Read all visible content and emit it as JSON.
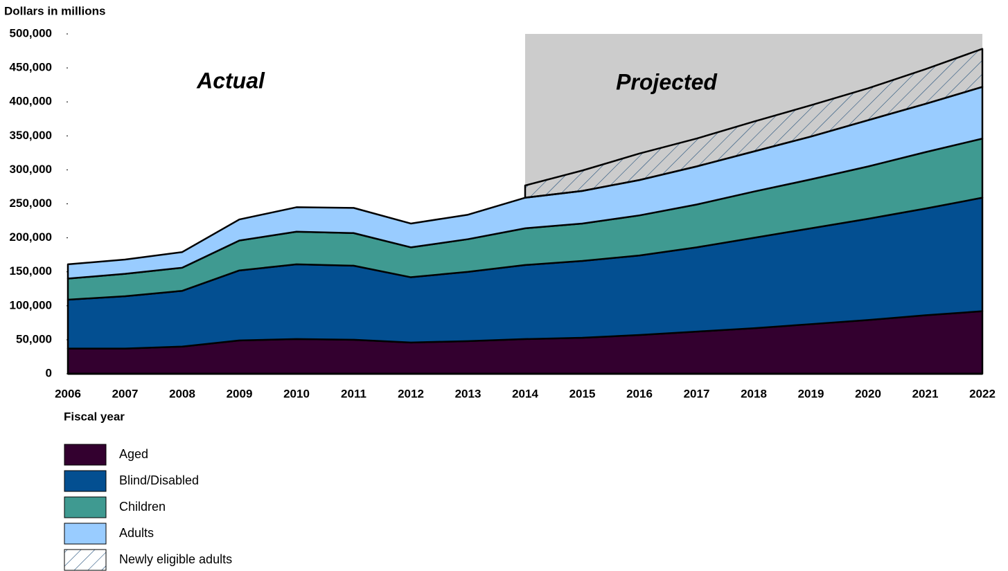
{
  "chart_data": {
    "type": "stacked_area",
    "y_axis_label": "Dollars in millions",
    "x_axis_label": "Fiscal year",
    "annotations": [
      "Actual",
      "Projected"
    ],
    "categories": [
      "2006",
      "2007",
      "2008",
      "2009",
      "2010",
      "2011",
      "2012",
      "2013",
      "2014",
      "2015",
      "2016",
      "2017",
      "2018",
      "2019",
      "2020",
      "2021",
      "2022"
    ],
    "ylim": [
      0,
      500000
    ],
    "yticks": [
      0,
      {
        "value": 50000,
        "label": "50,000"
      },
      {
        "value": 100000,
        "label": "100,000"
      },
      {
        "value": 150000,
        "label": "150,000"
      },
      {
        "value": 200000,
        "label": "200,000"
      },
      {
        "value": 250000,
        "label": "250,000"
      },
      {
        "value": 300000,
        "label": "300,000"
      },
      {
        "value": 350000,
        "label": "350,000"
      },
      {
        "value": 400000,
        "label": "400,000"
      },
      {
        "value": 450000,
        "label": "450,000"
      },
      {
        "value": 500000,
        "label": "500,000"
      }
    ],
    "series": [
      {
        "name": "Aged",
        "color": "#33002f",
        "values": [
          37000,
          37000,
          40000,
          49000,
          51000,
          50000,
          46000,
          48000,
          51000,
          53000,
          57000,
          62000,
          67000,
          73000,
          79000,
          86000,
          92000
        ]
      },
      {
        "name": "Blind/Disabled",
        "color": "#034f91",
        "values": [
          72000,
          77000,
          82000,
          103000,
          110000,
          109000,
          96000,
          102000,
          109000,
          113000,
          117000,
          124000,
          133000,
          141000,
          149000,
          157000,
          167000
        ]
      },
      {
        "name": "Children",
        "color": "#3f9a91",
        "values": [
          31000,
          33000,
          34000,
          44000,
          48000,
          48000,
          44000,
          48000,
          54000,
          55000,
          59000,
          63000,
          68000,
          72000,
          77000,
          83000,
          87000
        ]
      },
      {
        "name": "Adults",
        "color": "#99ccff",
        "values": [
          21000,
          21000,
          23000,
          31000,
          36000,
          37000,
          35000,
          36000,
          45000,
          48000,
          52000,
          56000,
          59000,
          63000,
          68000,
          71000,
          76000
        ]
      },
      {
        "name": "Newly eligible adults",
        "color": "#1f4e79",
        "pattern": "hatch",
        "values": [
          null,
          null,
          null,
          null,
          null,
          null,
          null,
          null,
          18000,
          30000,
          39000,
          41000,
          44000,
          46000,
          47000,
          51000,
          56000
        ]
      }
    ]
  }
}
